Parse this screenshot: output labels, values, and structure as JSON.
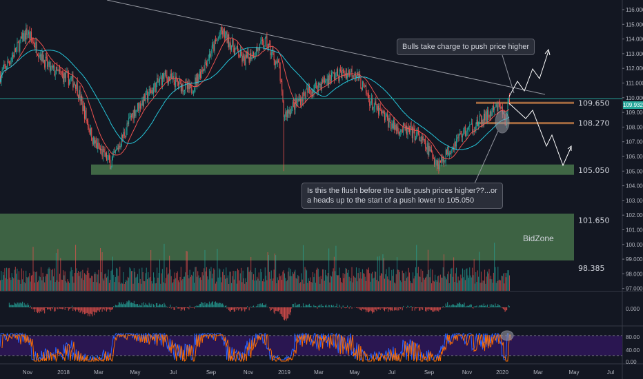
{
  "colors": {
    "up": "#26a69a",
    "down": "#ef5350",
    "bg": "#131722",
    "zone": "#4c7c4f",
    "stoch": "#2a1651",
    "level": "#a0683f"
  },
  "price_axis": {
    "labels": [
      "116.000",
      "115.000",
      "114.000",
      "113.000",
      "112.000",
      "111.000",
      "110.000",
      "109.000",
      "108.000",
      "107.000",
      "106.000",
      "105.000",
      "104.000",
      "103.000",
      "102.000",
      "101.000",
      "100.000",
      "99.000",
      "98.000",
      "97.000"
    ],
    "current_price": "109.932"
  },
  "macd_axis": {
    "labels": [
      "0.000"
    ]
  },
  "stoch_axis": {
    "labels": [
      "80.00",
      "40.00",
      "0.00"
    ]
  },
  "time_axis": {
    "labels": [
      "Nov",
      "2018",
      "Mar",
      "May",
      "Jul",
      "Sep",
      "Nov",
      "2019",
      "Mar",
      "May",
      "Jul",
      "Sep",
      "Nov",
      "2020",
      "Mar",
      "May",
      "Jul"
    ]
  },
  "levels": {
    "resistance": "109.650",
    "support": "108.270",
    "demand": "105.050",
    "bidzone_top": "101.650",
    "bidzone_bottom": "98.385",
    "bidzone_label": "BidZone"
  },
  "annotations": {
    "bull": "Bulls take charge to push price higher",
    "bear_line1": "Is this the flush before the bulls push prices higher??...or",
    "bear_line2": "a heads up to the start of a push lower to 105.050"
  },
  "price_path": [
    [
      0,
      111.5
    ],
    [
      30,
      114.5
    ],
    [
      55,
      112
    ],
    [
      85,
      111
    ],
    [
      105,
      107
    ],
    [
      125,
      105.5
    ],
    [
      150,
      109
    ],
    [
      185,
      111.5
    ],
    [
      215,
      110.5
    ],
    [
      250,
      114.5
    ],
    [
      275,
      112.5
    ],
    [
      300,
      113.8
    ],
    [
      315,
      112
    ],
    [
      320,
      108.8
    ],
    [
      345,
      110.3
    ],
    [
      375,
      111.5
    ],
    [
      400,
      111.8
    ],
    [
      420,
      109.5
    ],
    [
      445,
      108
    ],
    [
      470,
      107.5
    ],
    [
      495,
      105.5
    ],
    [
      520,
      107.5
    ],
    [
      545,
      108.5
    ],
    [
      565,
      109.5
    ],
    [
      570,
      108.2
    ],
    [
      575,
      109.9
    ]
  ]
}
